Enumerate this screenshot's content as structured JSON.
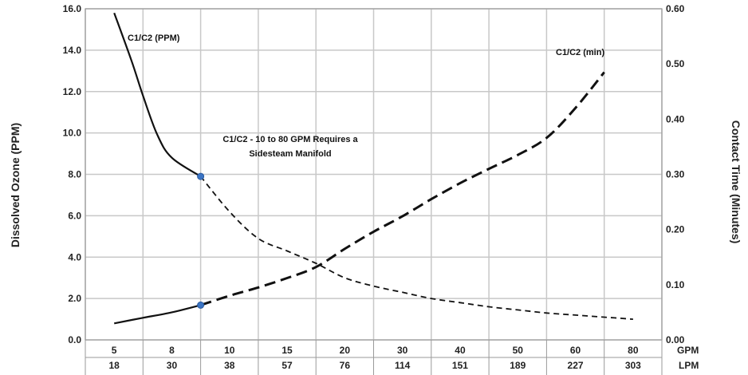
{
  "chart_data": {
    "type": "line",
    "title": "",
    "x_units_label": "GPM",
    "x2_units_label": "LPM",
    "categories_gpm": [
      "5",
      "8",
      "10",
      "15",
      "20",
      "30",
      "40",
      "50",
      "60",
      "80"
    ],
    "categories_lpm": [
      "18",
      "30",
      "38",
      "57",
      "76",
      "114",
      "151",
      "189",
      "227",
      "303"
    ],
    "y_left": {
      "label": "Dissolved Ozone (PPM)",
      "min": 0,
      "max": 16,
      "step": 2,
      "ticks": [
        "0.0",
        "2.0",
        "4.0",
        "6.0",
        "8.0",
        "10.0",
        "12.0",
        "14.0",
        "16.0"
      ]
    },
    "y_right": {
      "label": "Contact Time (Minutes)",
      "min": 0,
      "max": 0.6,
      "step": 0.1,
      "ticks": [
        "0.00",
        "0.10",
        "0.20",
        "0.30",
        "0.40",
        "0.50",
        "0.60"
      ]
    },
    "grid": true,
    "series": [
      {
        "name": "C1/C2 (PPM)",
        "axis": "left",
        "color": "#111111",
        "solid_points": [
          [
            0,
            15.8
          ],
          [
            0.6,
            13.5
          ],
          [
            1.0,
            11.8
          ],
          [
            1.5,
            9.9
          ],
          [
            2.0,
            8.8
          ],
          [
            3.0,
            7.9
          ]
        ],
        "dashed_points": [
          [
            3.0,
            7.9
          ],
          [
            4.0,
            6.2
          ],
          [
            5.0,
            4.9
          ],
          [
            6.0,
            4.3
          ],
          [
            7.0,
            3.7
          ],
          [
            8.0,
            3.0
          ],
          [
            9.0,
            2.6
          ],
          [
            10.0,
            2.3
          ],
          [
            11.0,
            2.0
          ],
          [
            12.0,
            1.8
          ],
          [
            13.0,
            1.6
          ],
          [
            14.0,
            1.45
          ],
          [
            15.0,
            1.3
          ],
          [
            16.0,
            1.2
          ],
          [
            17.0,
            1.1
          ],
          [
            18.0,
            1.0
          ]
        ]
      },
      {
        "name": "C1/C2 (min)",
        "axis": "right",
        "color": "#111111",
        "solid_points": [
          [
            0,
            0.03
          ],
          [
            1.0,
            0.04
          ],
          [
            2.0,
            0.05
          ],
          [
            3.0,
            0.063
          ]
        ],
        "dashed_points": [
          [
            3.0,
            0.063
          ],
          [
            4.0,
            0.08
          ],
          [
            5.0,
            0.095
          ],
          [
            6.0,
            0.112
          ],
          [
            7.0,
            0.132
          ],
          [
            8.0,
            0.165
          ],
          [
            9.0,
            0.196
          ],
          [
            10.0,
            0.224
          ],
          [
            11.0,
            0.255
          ],
          [
            12.0,
            0.284
          ],
          [
            13.0,
            0.31
          ],
          [
            14.0,
            0.335
          ],
          [
            15.0,
            0.366
          ],
          [
            16.0,
            0.42
          ],
          [
            17.0,
            0.485
          ]
        ]
      }
    ],
    "markers": [
      {
        "series": "C1/C2 (PPM)",
        "x": 3.0,
        "y": 7.9,
        "color": "#3b74c4"
      },
      {
        "series": "C1/C2 (min)",
        "x": 3.0,
        "y": 0.063,
        "color": "#3b74c4"
      }
    ],
    "annotations": [
      "C1/C2 - 10 to 80 GPM Requires a",
      "Sidesteam Manifold"
    ]
  }
}
